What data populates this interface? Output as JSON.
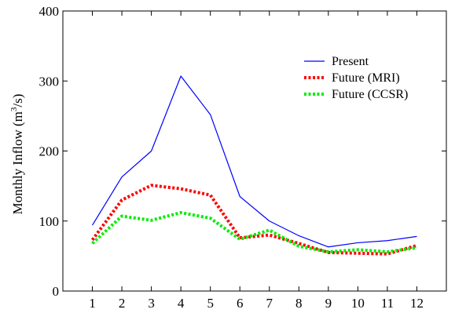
{
  "chart_data": {
    "type": "line",
    "title": "",
    "xlabel": "",
    "ylabel": "Monthly Inflow (m³/s)",
    "ylabel_parts": {
      "before": "Monthly Inflow (m",
      "sup": "3",
      "after": "/s)"
    },
    "x": [
      1,
      2,
      3,
      4,
      5,
      6,
      7,
      8,
      9,
      10,
      11,
      12
    ],
    "x_ticks": [
      "1",
      "2",
      "3",
      "4",
      "5",
      "6",
      "7",
      "8",
      "9",
      "10",
      "11",
      "12"
    ],
    "xlim": [
      0,
      13
    ],
    "ylim": [
      0,
      400
    ],
    "y_ticks": [
      0,
      100,
      200,
      300,
      400
    ],
    "grid": false,
    "legend_position": "top-right",
    "series": [
      {
        "name": "Present",
        "color": "#0000ff",
        "style": "solid",
        "values": [
          94,
          163,
          200,
          307,
          252,
          135,
          100,
          79,
          63,
          69,
          72,
          78
        ]
      },
      {
        "name": "Future (MRI)",
        "color": "#ff0000",
        "style": "dotted",
        "values": [
          73,
          130,
          151,
          146,
          137,
          76,
          80,
          68,
          55,
          54,
          53,
          65
        ]
      },
      {
        "name": "Future (CCSR)",
        "color": "#00ee00",
        "style": "dotted",
        "values": [
          68,
          107,
          101,
          112,
          104,
          74,
          87,
          64,
          56,
          59,
          56,
          62
        ]
      }
    ]
  }
}
